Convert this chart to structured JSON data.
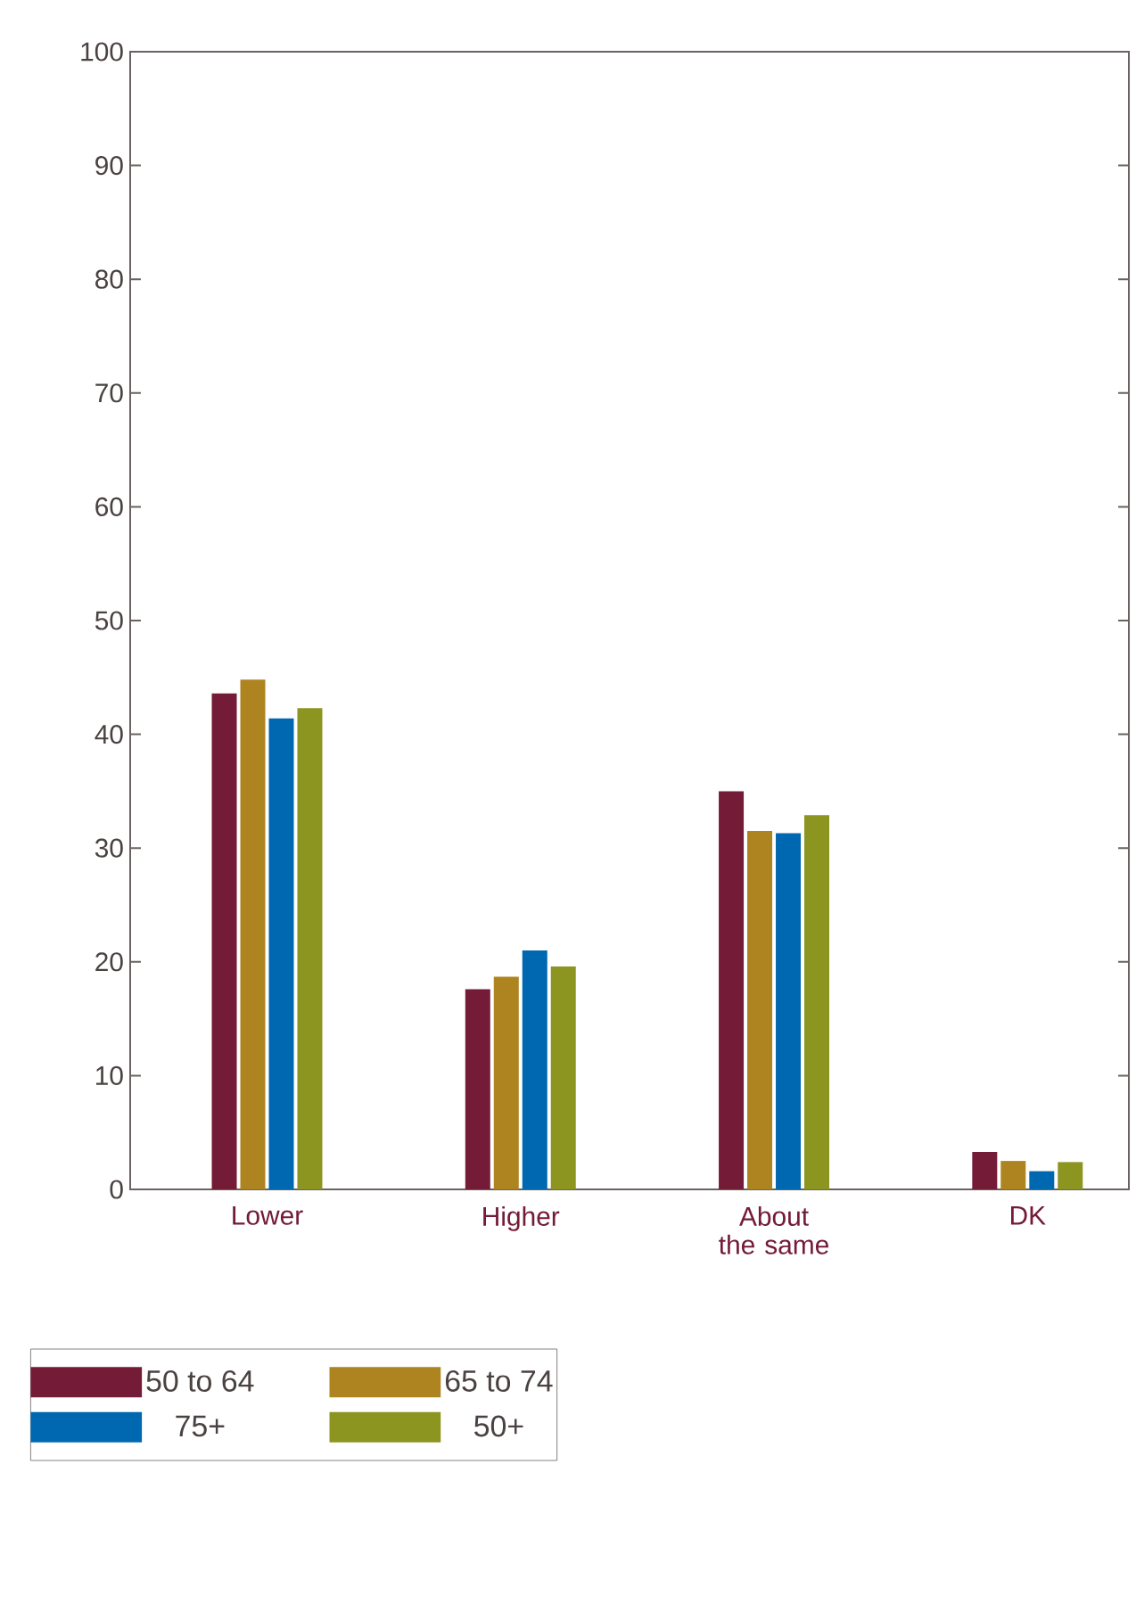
{
  "chart_data": {
    "type": "bar",
    "categories": [
      "Lower",
      "Higher",
      "About the same",
      "DK"
    ],
    "series": [
      {
        "name": "50 to 64",
        "color": "#741b37",
        "values": [
          43.6,
          17.6,
          35.0,
          3.3
        ]
      },
      {
        "name": "65 to 74",
        "color": "#ad841f",
        "values": [
          44.8,
          18.7,
          31.5,
          2.5
        ]
      },
      {
        "name": "75+",
        "color": "#0068b0",
        "values": [
          41.4,
          21.0,
          31.3,
          1.6
        ]
      },
      {
        "name": "50+",
        "color": "#8c951f",
        "values": [
          42.3,
          19.6,
          32.9,
          2.4
        ]
      }
    ],
    "ylim": [
      0,
      100
    ],
    "yticks": [
      0,
      10,
      20,
      30,
      40,
      50,
      60,
      70,
      80,
      90,
      100
    ],
    "grid": false,
    "legend": "bottom"
  }
}
